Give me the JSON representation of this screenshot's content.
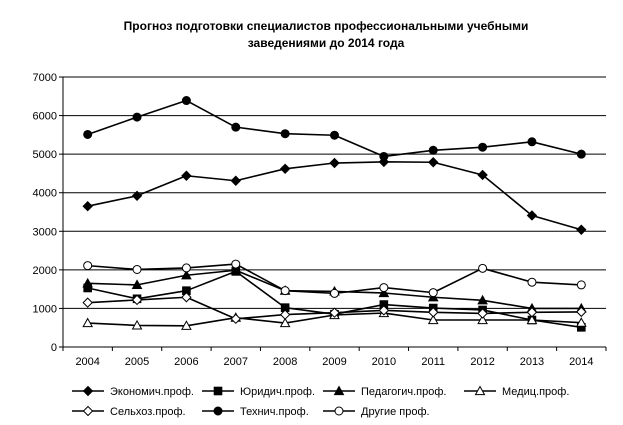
{
  "chart_data": {
    "type": "line",
    "title": "Прогноз подготовки специалистов профессиональными учебными",
    "subtitle": "заведениями до 2014 года",
    "xlabel": "",
    "ylabel": "",
    "ylim": [
      0,
      7000
    ],
    "yticks": [
      0,
      1000,
      2000,
      3000,
      4000,
      5000,
      6000,
      7000
    ],
    "grid": "horizontal",
    "legend_position": "bottom",
    "categories": [
      "2004",
      "2005",
      "2006",
      "2007",
      "2008",
      "2009",
      "2010",
      "2011",
      "2012",
      "2013",
      "2014"
    ],
    "series": [
      {
        "name": "Экономич.проф.",
        "marker": "diamond-filled",
        "values": [
          3650,
          3920,
          4440,
          4310,
          4620,
          4770,
          4800,
          4790,
          4460,
          3410,
          3040
        ]
      },
      {
        "name": "Юридич.проф.",
        "marker": "square-filled",
        "values": [
          1530,
          1250,
          1460,
          1960,
          1020,
          850,
          1100,
          1010,
          960,
          700,
          510
        ]
      },
      {
        "name": "Педагогич.проф.",
        "marker": "triangle-filled",
        "values": [
          1650,
          1610,
          1860,
          1990,
          1460,
          1440,
          1400,
          1290,
          1210,
          1000,
          1000
        ]
      },
      {
        "name": "Медиц.проф.",
        "marker": "triangle-open",
        "values": [
          620,
          560,
          550,
          760,
          620,
          830,
          880,
          700,
          700,
          700,
          630
        ]
      },
      {
        "name": "Сельхоз.проф.",
        "marker": "diamond-open",
        "values": [
          1150,
          1220,
          1290,
          730,
          840,
          890,
          950,
          900,
          870,
          900,
          910
        ]
      },
      {
        "name": "Технич.проф.",
        "marker": "circle-filled",
        "values": [
          5510,
          5960,
          6390,
          5700,
          5530,
          5490,
          4940,
          5100,
          5180,
          5320,
          5000
        ]
      },
      {
        "name": "Другие проф.",
        "marker": "circle-open",
        "values": [
          2110,
          2010,
          2050,
          2150,
          1460,
          1390,
          1540,
          1410,
          2040,
          1680,
          1610
        ]
      }
    ]
  }
}
